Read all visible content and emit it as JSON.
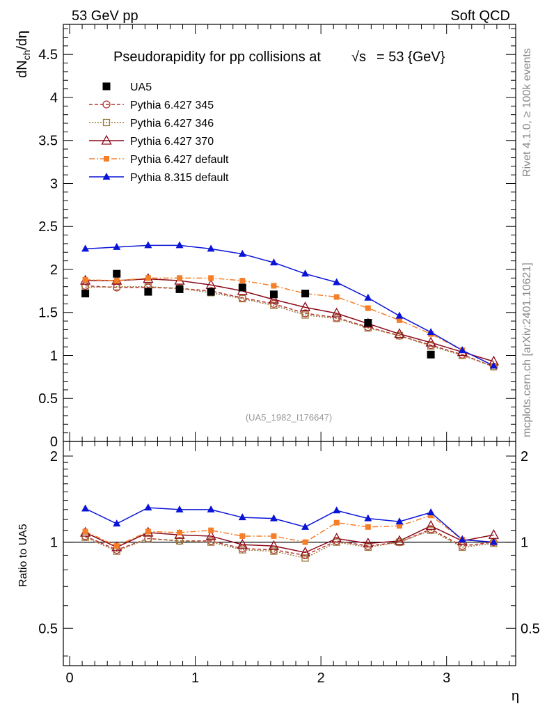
{
  "header": {
    "left": "53 GeV pp",
    "right": "Soft QCD"
  },
  "side_labels": {
    "rivet": "Rivet 4.1.0, ≥ 100k events",
    "mcplots": "mcplots.cern.ch [arXiv:2401.10621]"
  },
  "chart_data": [
    {
      "type": "line",
      "panel": "main",
      "title_prefix": "Pseudorapidity for pp collisions at",
      "title_sqrt": "√s",
      "title_suffix": " = 53 {GeV}",
      "watermark": "(UA5_1982_I176647)",
      "ylabel": "dN",
      "ylabel_sub": "ch",
      "ylabel_tail": "/dη",
      "xlabel": "η",
      "xlim": [
        -0.05,
        3.55
      ],
      "ylim": [
        0,
        4.85
      ],
      "yticks": [
        0,
        0.5,
        1,
        1.5,
        2,
        2.5,
        3,
        3.5,
        4,
        4.5
      ],
      "ytick_labels": [
        "0",
        "0.5",
        "1",
        "1.5",
        "2",
        "2.5",
        "3",
        "3.5",
        "4",
        "4.5"
      ],
      "x": [
        0.125,
        0.375,
        0.625,
        0.875,
        1.125,
        1.375,
        1.625,
        1.875,
        2.125,
        2.375,
        2.625,
        2.875,
        3.125,
        3.375
      ],
      "series": [
        {
          "name": "UA5",
          "kind": "data",
          "color": "#000000",
          "marker": "square",
          "x": [
            0.125,
            0.375,
            0.625,
            0.875,
            1.125,
            1.375,
            1.625,
            1.875,
            2.375,
            2.875
          ],
          "values": [
            1.72,
            1.95,
            1.74,
            1.77,
            1.74,
            1.79,
            1.71,
            1.72,
            1.38,
            1.01
          ]
        },
        {
          "name": "Pythia 6.427 345",
          "kind": "mc",
          "color": "#b83232",
          "marker": "circle-open",
          "dash": "5,3",
          "values": [
            1.81,
            1.79,
            1.79,
            1.78,
            1.75,
            1.67,
            1.6,
            1.49,
            1.44,
            1.33,
            1.23,
            1.12,
            1.01,
            0.87
          ]
        },
        {
          "name": "Pythia 6.427 346",
          "kind": "mc",
          "color": "#9a7a3c",
          "marker": "square-open",
          "dash": "2,2",
          "values": [
            1.79,
            1.8,
            1.8,
            1.78,
            1.73,
            1.66,
            1.58,
            1.47,
            1.43,
            1.32,
            1.23,
            1.11,
            1.0,
            0.87
          ]
        },
        {
          "name": "Pythia 6.427 370",
          "kind": "mc",
          "color": "#8b0a1a",
          "marker": "triangle-open",
          "dash": "",
          "values": [
            1.87,
            1.87,
            1.89,
            1.87,
            1.82,
            1.75,
            1.65,
            1.56,
            1.49,
            1.37,
            1.25,
            1.15,
            1.04,
            0.93
          ]
        },
        {
          "name": "Pythia 6.427 default",
          "kind": "mc",
          "color": "#f57f29",
          "marker": "square-filled",
          "dash": "8,3,2,3",
          "values": [
            1.88,
            1.87,
            1.9,
            1.9,
            1.9,
            1.87,
            1.81,
            1.72,
            1.68,
            1.55,
            1.41,
            1.25,
            1.06,
            0.88
          ]
        },
        {
          "name": "Pythia 8.315 default",
          "kind": "mc",
          "color": "#0a14d7",
          "marker": "triangle-filled",
          "dash": "",
          "values": [
            2.24,
            2.26,
            2.28,
            2.28,
            2.24,
            2.18,
            2.08,
            1.95,
            1.85,
            1.67,
            1.46,
            1.27,
            1.06,
            0.88
          ]
        }
      ]
    },
    {
      "type": "line",
      "panel": "ratio",
      "ylabel": "Ratio to UA5",
      "ylim": [
        0.37,
        2.25
      ],
      "yticks": [
        0.5,
        1,
        2
      ],
      "ytick_labels": [
        "0.5",
        "1",
        "2"
      ],
      "xticks": [
        0,
        1,
        2,
        3
      ],
      "xtick_labels": [
        "0",
        "1",
        "2",
        "3"
      ],
      "x": [
        0.125,
        0.375,
        0.625,
        0.875,
        1.125,
        1.375,
        1.625,
        1.875,
        2.125,
        2.375,
        2.625,
        2.875,
        3.125,
        3.375
      ],
      "reference": 1,
      "series": [
        {
          "name": "Pythia 6.427 345",
          "color": "#b83232",
          "marker": "circle-open",
          "dash": "5,3",
          "values": [
            1.05,
            0.94,
            1.03,
            1.01,
            1.01,
            0.95,
            0.94,
            0.9,
            1.01,
            0.97,
            1.0,
            1.11,
            0.97,
            1.0
          ]
        },
        {
          "name": "Pythia 6.427 346",
          "color": "#9a7a3c",
          "marker": "square-open",
          "dash": "2,2",
          "values": [
            1.04,
            0.93,
            1.03,
            1.01,
            1.0,
            0.94,
            0.93,
            0.88,
            1.0,
            0.96,
            1.0,
            1.1,
            0.96,
            0.99
          ]
        },
        {
          "name": "Pythia 6.427 370",
          "color": "#8b0a1a",
          "marker": "triangle-open",
          "dash": "",
          "values": [
            1.08,
            0.96,
            1.08,
            1.06,
            1.05,
            0.98,
            0.97,
            0.92,
            1.03,
            0.99,
            1.01,
            1.14,
            1.01,
            1.06
          ]
        },
        {
          "name": "Pythia 6.427 default",
          "color": "#f57f29",
          "marker": "square-filled",
          "dash": "8,3,2,3",
          "values": [
            1.09,
            0.97,
            1.09,
            1.08,
            1.1,
            1.05,
            1.05,
            1.0,
            1.17,
            1.13,
            1.14,
            1.24,
            1.02,
            1.0
          ]
        },
        {
          "name": "Pythia 8.315 default",
          "color": "#0a14d7",
          "marker": "triangle-filled",
          "dash": "",
          "values": [
            1.31,
            1.16,
            1.32,
            1.3,
            1.3,
            1.22,
            1.21,
            1.13,
            1.29,
            1.21,
            1.18,
            1.27,
            1.02,
            1.0
          ]
        }
      ]
    }
  ]
}
